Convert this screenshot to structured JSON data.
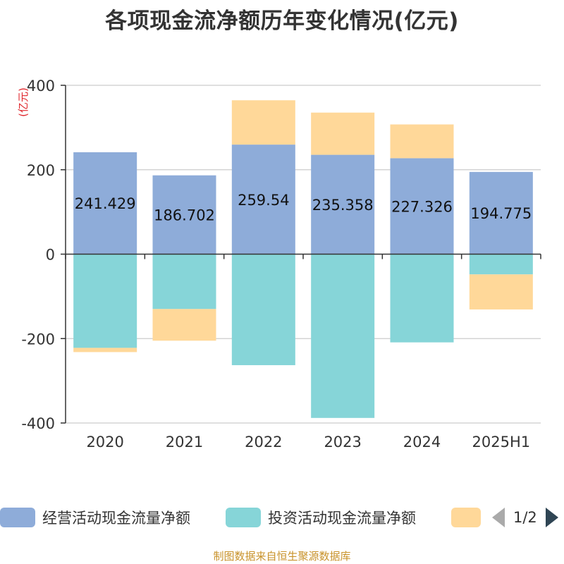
{
  "title": "各项现金流净额历年变化情况(亿元)",
  "source": "制图数据来自恒生聚源数据库",
  "colors": {
    "operating": "#8eacd9",
    "investing": "#86d5d8",
    "financing": "#ffd899",
    "axis": "#333333",
    "grid": "#cccccc",
    "unit": "#e0262c"
  },
  "legend": {
    "items": [
      {
        "label": "经营活动现金流量净额",
        "color": "#8eacd9"
      },
      {
        "label": "投资活动现金流量净额",
        "color": "#86d5d8"
      },
      {
        "label": "",
        "color": "#ffd899"
      }
    ],
    "pager": "1/2"
  },
  "chart_data": {
    "type": "bar",
    "stacked": true,
    "title": "各项现金流净额历年变化情况(亿元)",
    "ylabel": "(亿元)",
    "ylim": [
      -400,
      400
    ],
    "yticks": [
      -400,
      -200,
      0,
      200,
      400
    ],
    "grid": true,
    "legend_position": "bottom",
    "categories": [
      "2020",
      "2021",
      "2022",
      "2023",
      "2024",
      "2025H1"
    ],
    "series": [
      {
        "name": "经营活动现金流量净额",
        "values": [
          241.429,
          186.702,
          259.54,
          235.358,
          227.326,
          194.775
        ],
        "labels": [
          "241.429",
          "186.702",
          "259.54",
          "235.358",
          "227.326",
          "194.775"
        ]
      },
      {
        "name": "投资活动现金流量净额",
        "values": [
          -222,
          -130,
          -263,
          -388,
          -209,
          -48
        ]
      },
      {
        "values": [
          -10,
          -75,
          105,
          100,
          80,
          -83
        ]
      }
    ]
  }
}
